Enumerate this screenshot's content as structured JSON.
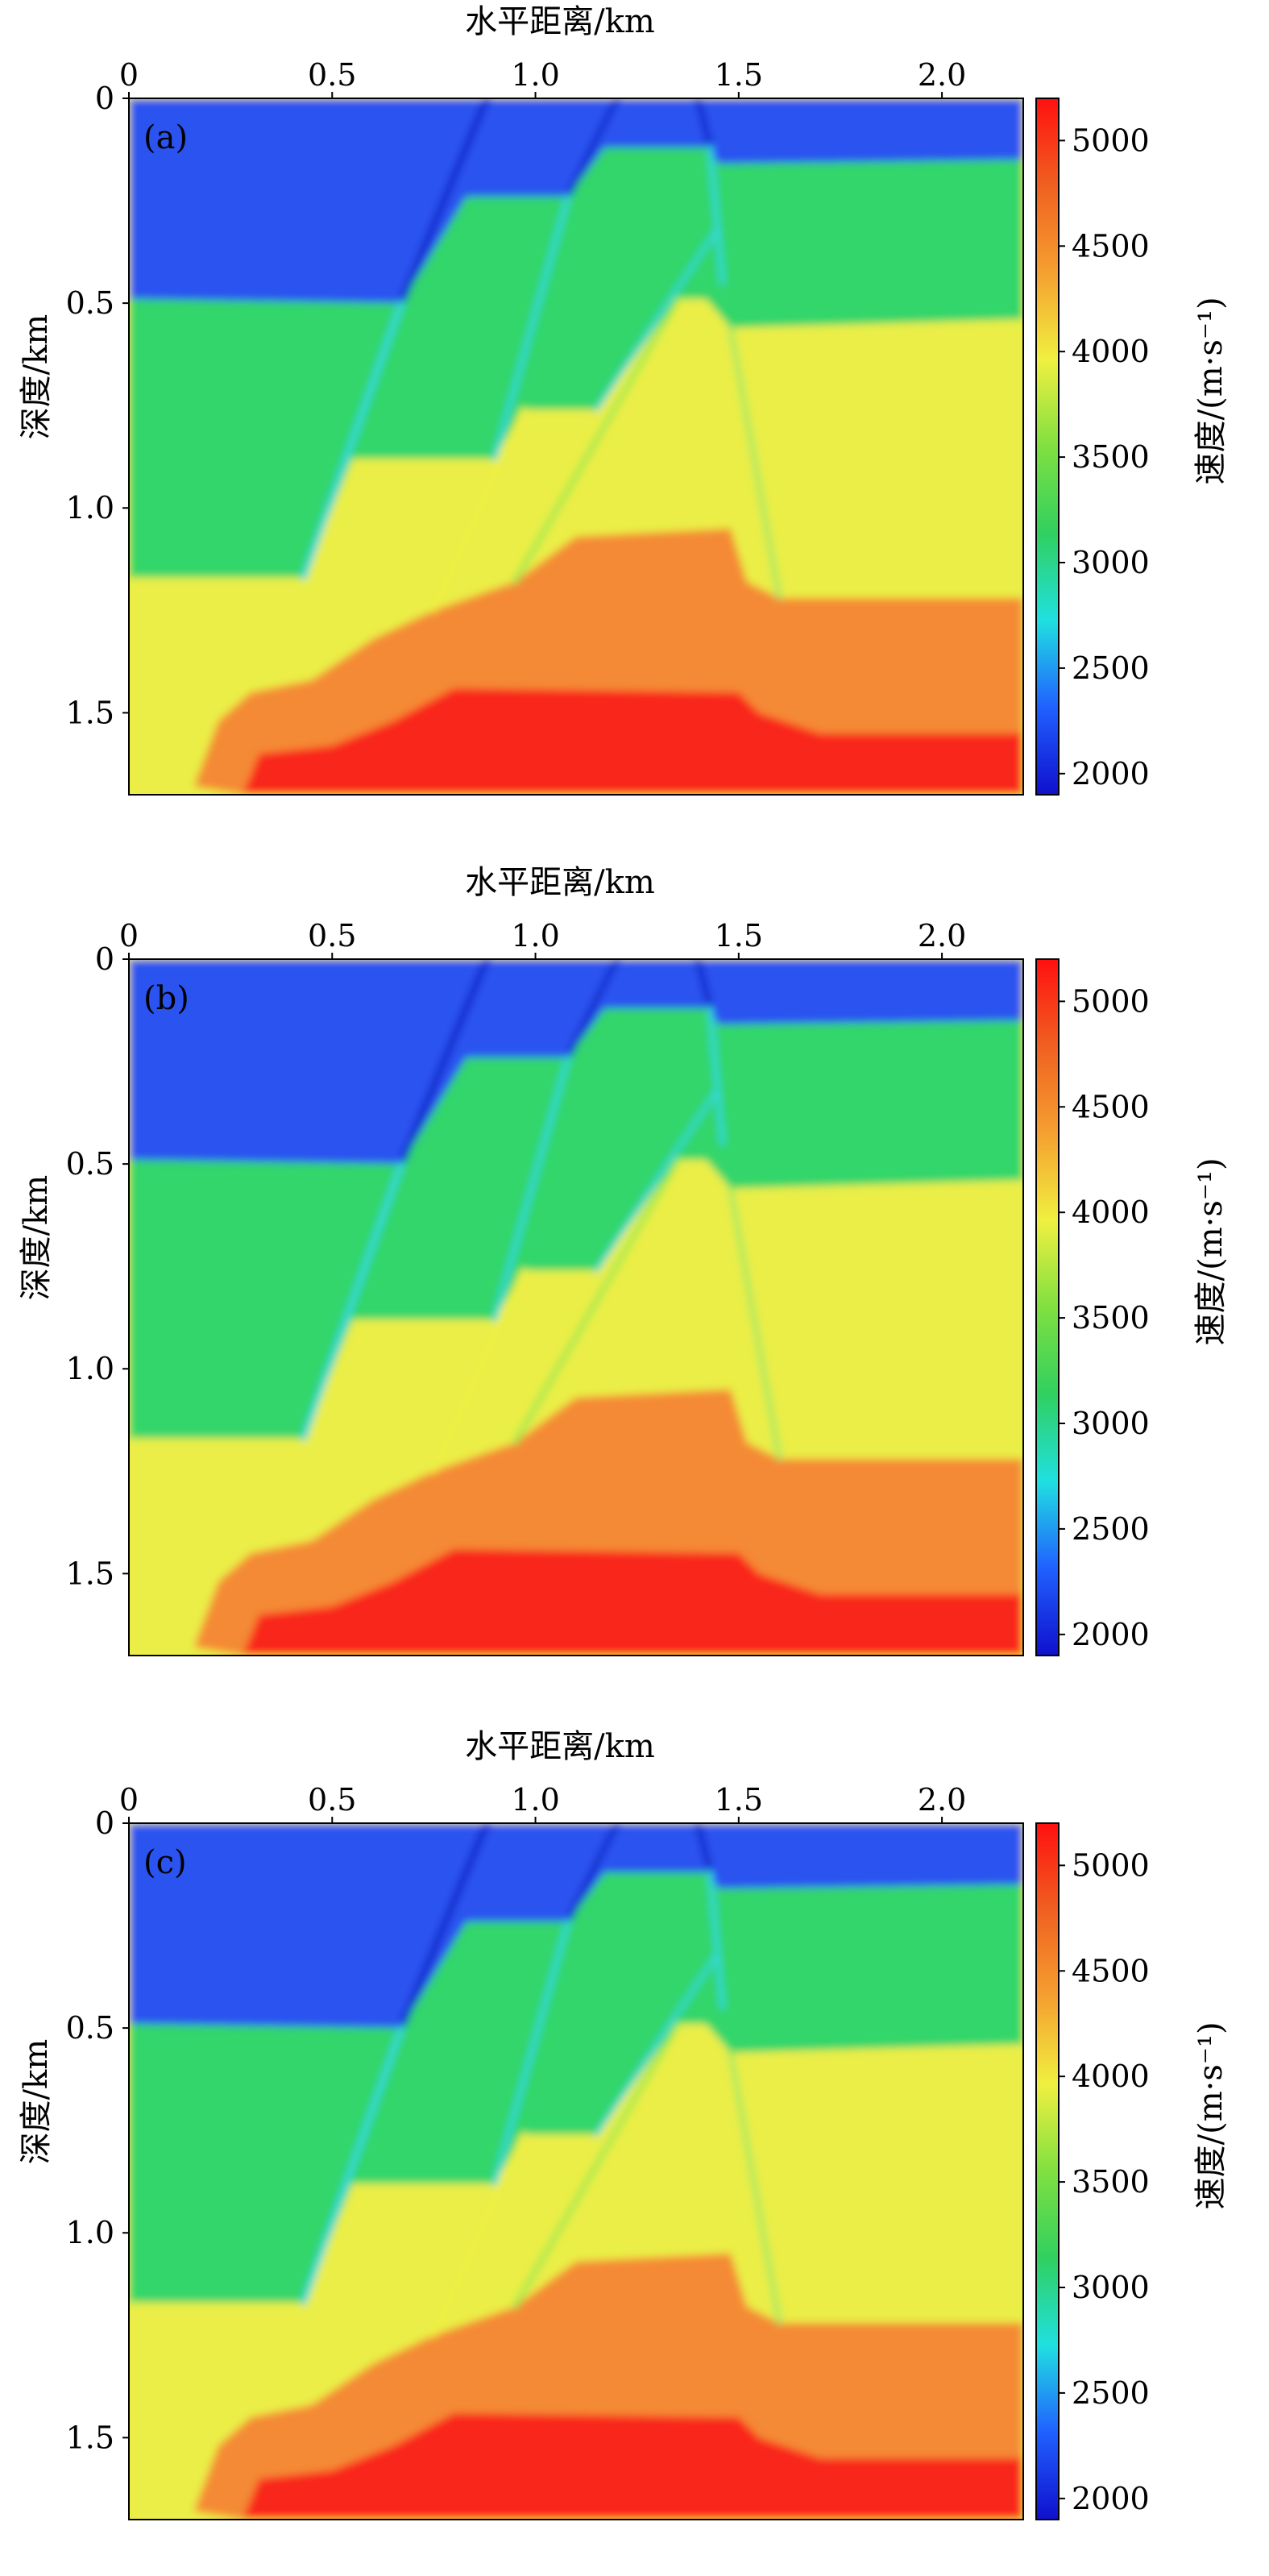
{
  "colors": {
    "colormap": [
      "#1010cc",
      "#2060ff",
      "#20e0e0",
      "#30d060",
      "#80e040",
      "#f0f040",
      "#f5a030",
      "#f06020",
      "#ff1010"
    ]
  },
  "chart_data": [
    {
      "type": "heatmap",
      "panel_label": "(a)",
      "xlabel": "水平距离/km",
      "ylabel": "深度/km",
      "colorbar_label": "速度/(m·s⁻¹)",
      "xlim": [
        0,
        2.2
      ],
      "ylim": [
        1.7,
        0
      ],
      "x_ticks": [
        {
          "v": 0,
          "t": "0"
        },
        {
          "v": 0.5,
          "t": "0.5"
        },
        {
          "v": 1.0,
          "t": "1.0"
        },
        {
          "v": 1.5,
          "t": "1.5"
        },
        {
          "v": 2.0,
          "t": "2.0"
        }
      ],
      "y_ticks": [
        {
          "v": 0,
          "t": "0"
        },
        {
          "v": 0.5,
          "t": "0.5"
        },
        {
          "v": 1.0,
          "t": "1.0"
        },
        {
          "v": 1.5,
          "t": "1.5"
        }
      ],
      "colorbar_range": [
        1900,
        5200
      ],
      "colorbar_ticks": [
        {
          "v": 2000,
          "t": "2000"
        },
        {
          "v": 2500,
          "t": "2500"
        },
        {
          "v": 3000,
          "t": "3000"
        },
        {
          "v": 3500,
          "t": "3500"
        },
        {
          "v": 4000,
          "t": "4000"
        },
        {
          "v": 4500,
          "t": "4500"
        },
        {
          "v": 5000,
          "t": "5000"
        }
      ]
    },
    {
      "type": "heatmap",
      "panel_label": "(b)",
      "xlabel": "水平距离/km",
      "ylabel": "深度/km",
      "colorbar_label": "速度/(m·s⁻¹)",
      "xlim": [
        0,
        2.2
      ],
      "ylim": [
        1.7,
        0
      ],
      "x_ticks": [
        {
          "v": 0,
          "t": "0"
        },
        {
          "v": 0.5,
          "t": "0.5"
        },
        {
          "v": 1.0,
          "t": "1.0"
        },
        {
          "v": 1.5,
          "t": "1.5"
        },
        {
          "v": 2.0,
          "t": "2.0"
        }
      ],
      "y_ticks": [
        {
          "v": 0,
          "t": "0"
        },
        {
          "v": 0.5,
          "t": "0.5"
        },
        {
          "v": 1.0,
          "t": "1.0"
        },
        {
          "v": 1.5,
          "t": "1.5"
        }
      ],
      "colorbar_range": [
        1900,
        5200
      ],
      "colorbar_ticks": [
        {
          "v": 2000,
          "t": "2000"
        },
        {
          "v": 2500,
          "t": "2500"
        },
        {
          "v": 3000,
          "t": "3000"
        },
        {
          "v": 3500,
          "t": "3500"
        },
        {
          "v": 4000,
          "t": "4000"
        },
        {
          "v": 4500,
          "t": "4500"
        },
        {
          "v": 5000,
          "t": "5000"
        }
      ]
    },
    {
      "type": "heatmap",
      "panel_label": "(c)",
      "xlabel": "水平距离/km",
      "ylabel": "深度/km",
      "colorbar_label": "速度/(m·s⁻¹)",
      "xlim": [
        0,
        2.2
      ],
      "ylim": [
        1.7,
        0
      ],
      "x_ticks": [
        {
          "v": 0,
          "t": "0"
        },
        {
          "v": 0.5,
          "t": "0.5"
        },
        {
          "v": 1.0,
          "t": "1.0"
        },
        {
          "v": 1.5,
          "t": "1.5"
        },
        {
          "v": 2.0,
          "t": "2.0"
        }
      ],
      "y_ticks": [
        {
          "v": 0,
          "t": "0"
        },
        {
          "v": 0.5,
          "t": "0.5"
        },
        {
          "v": 1.0,
          "t": "1.0"
        },
        {
          "v": 1.5,
          "t": "1.5"
        }
      ],
      "colorbar_range": [
        1900,
        5200
      ],
      "colorbar_ticks": [
        {
          "v": 2000,
          "t": "2000"
        },
        {
          "v": 2500,
          "t": "2500"
        },
        {
          "v": 3000,
          "t": "3000"
        },
        {
          "v": 3500,
          "t": "3500"
        },
        {
          "v": 4000,
          "t": "4000"
        },
        {
          "v": 4500,
          "t": "4500"
        },
        {
          "v": 5000,
          "t": "5000"
        }
      ]
    }
  ]
}
